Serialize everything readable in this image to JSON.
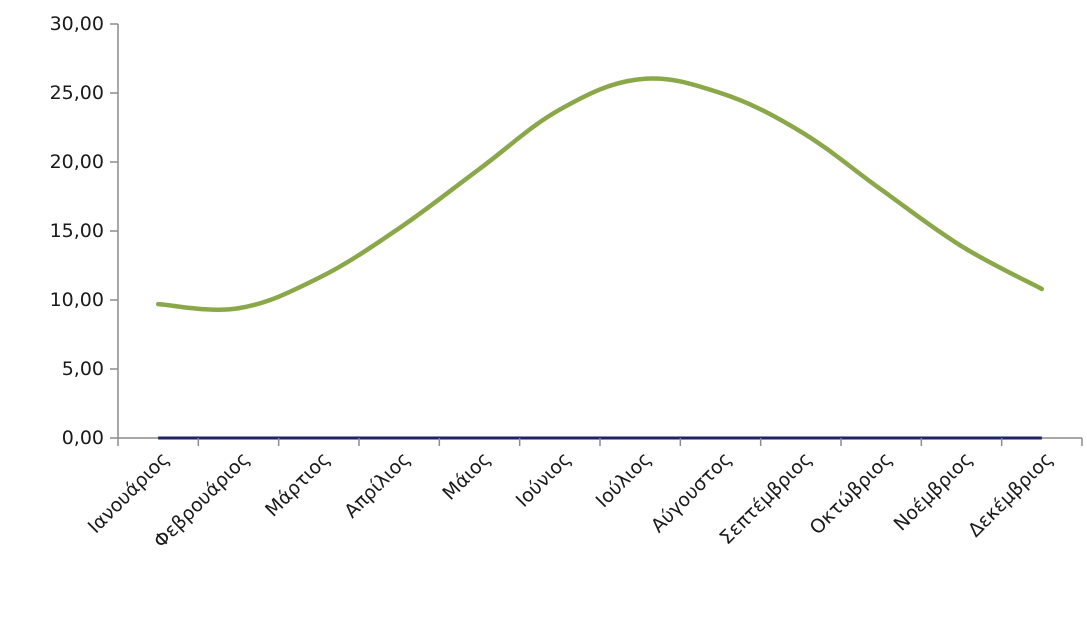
{
  "chart_data": {
    "type": "line",
    "title": "",
    "xlabel": "",
    "ylabel": "",
    "categories": [
      "Ιανουάριος",
      "Φεβρουάριος",
      "Μάρτιος",
      "Απρίλιος",
      "Μάιος",
      "Ιούνιος",
      "Ιούλιος",
      "Αύγουστος",
      "Σεπτέμβριος",
      "Οκτώβριος",
      "Νοέμβριος",
      "Δεκέμβριος"
    ],
    "series": [
      {
        "values": [
          9.7,
          9.4,
          11.6,
          15.2,
          19.5,
          23.8,
          26.0,
          25.0,
          22.2,
          18.0,
          13.9,
          10.8
        ],
        "color": "#8aa84a"
      }
    ],
    "ylim": [
      0,
      30
    ],
    "yticks": [
      "0,00",
      "5,00",
      "10,00",
      "15,00",
      "20,00",
      "25,00",
      "30,00"
    ],
    "grid": false,
    "legend": "none",
    "baseline_color": "#1f2266",
    "axis_color": "#8c8c8c"
  }
}
